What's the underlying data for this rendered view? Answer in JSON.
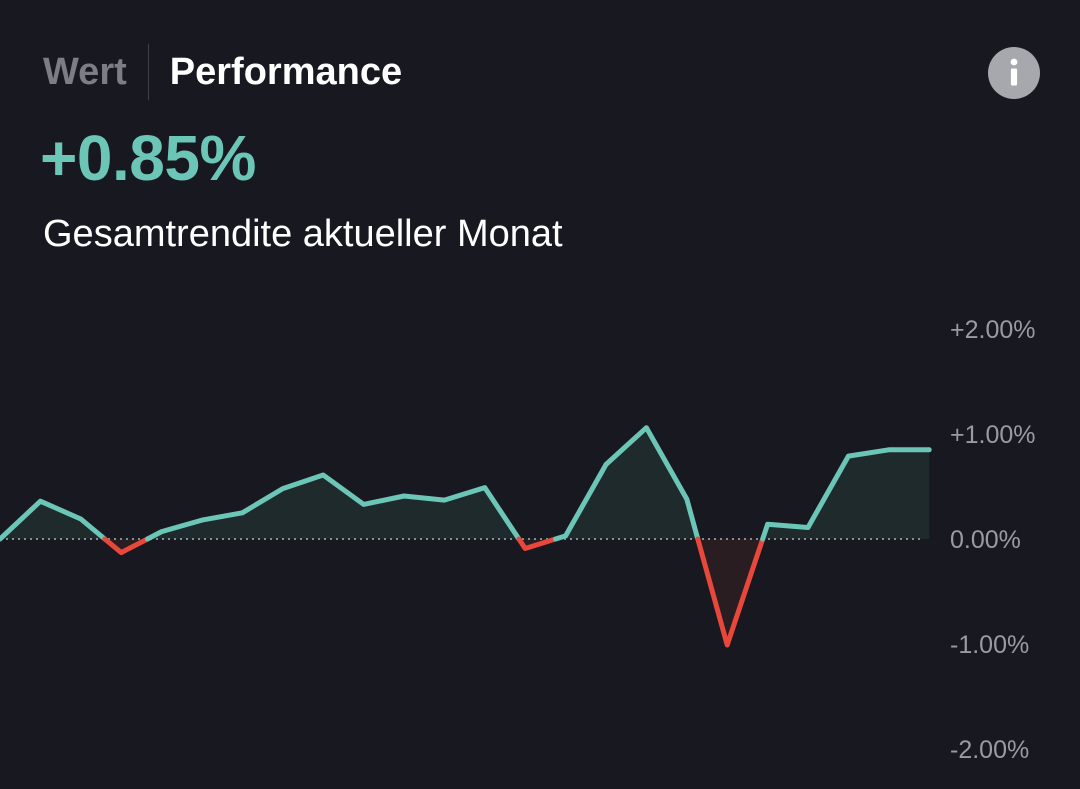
{
  "tabs": [
    {
      "label": "Wert",
      "active": false
    },
    {
      "label": "Performance",
      "active": true
    }
  ],
  "info_icon": "info-icon",
  "headline_value": "+0.85%",
  "headline_label": "Gesamtrendite aktueller Monat",
  "colors": {
    "background": "#181920",
    "positive": "#6cc6b7",
    "negative": "#e8473b",
    "tab_inactive": "#7d7e85",
    "axis_label": "#9a9ba1"
  },
  "chart_data": {
    "type": "area",
    "title": "",
    "xlabel": "",
    "ylabel": "",
    "ylim": [
      -2.0,
      2.0
    ],
    "yticks": [
      {
        "value": 2.0,
        "label": "+2.00%"
      },
      {
        "value": 1.0,
        "label": "+1.00%"
      },
      {
        "value": 0.0,
        "label": "0.00%"
      },
      {
        "value": -1.0,
        "label": "-1.00%"
      },
      {
        "value": -2.0,
        "label": "-2.00%"
      }
    ],
    "baseline": 0.0,
    "grid": false,
    "legend": "none",
    "series": [
      {
        "values": [
          0.0,
          0.36,
          0.19,
          -0.13,
          0.07,
          0.18,
          0.25,
          0.48,
          0.61,
          0.33,
          0.41,
          0.37,
          0.49,
          -0.09,
          0.03,
          0.71,
          1.06,
          0.38,
          -1.01,
          0.14,
          0.11,
          0.79,
          0.85,
          0.85
        ]
      }
    ]
  }
}
